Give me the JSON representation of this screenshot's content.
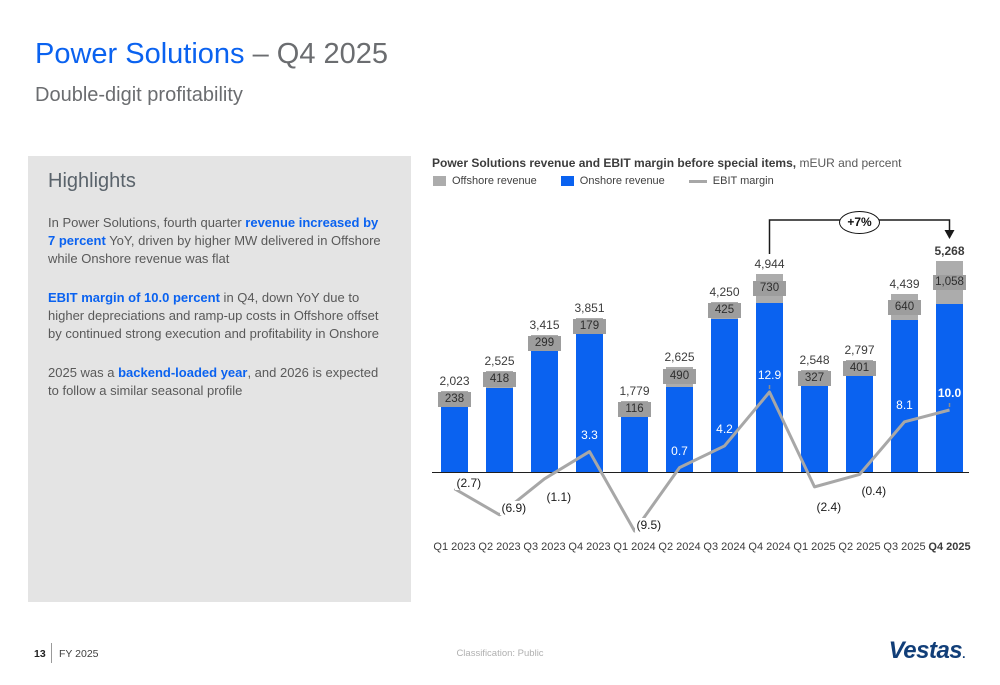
{
  "slide": {
    "title_primary": "Power Solutions",
    "title_secondary": " – Q4 2025",
    "subtitle": "Double-digit profitability"
  },
  "highlights": {
    "heading": "Highlights",
    "paragraphs": [
      [
        {
          "t": "In Power Solutions, fourth quarter "
        },
        {
          "t": "revenue increased by 7 percent",
          "em": true
        },
        {
          "t": " YoY, driven by higher MW delivered in Offshore while Onshore revenue was flat"
        }
      ],
      [
        {
          "t": "EBIT margin of 10.0 percent",
          "em": true
        },
        {
          "t": " in Q4, down YoY due to higher depreciations and ramp-up costs in Offshore offset by continued strong execution and profitability in Onshore"
        }
      ],
      [
        {
          "t": "2025 was a "
        },
        {
          "t": "backend-loaded year",
          "em": true
        },
        {
          "t": ", and 2026 is expected to follow a similar seasonal profile"
        }
      ]
    ]
  },
  "chart": {
    "title_bold": "Power Solutions revenue and EBIT margin before special items,",
    "title_rest": " mEUR and percent",
    "legend": [
      {
        "label": "Offshore revenue",
        "swatch": "box",
        "color": "#acacac"
      },
      {
        "label": "Onshore revenue",
        "swatch": "box",
        "color": "#0a62f0"
      },
      {
        "label": "EBIT margin",
        "swatch": "line",
        "color": "#a7a7a7"
      }
    ]
  },
  "chart_data": {
    "type": "stacked-bar+line",
    "categories": [
      "Q1 2023",
      "Q2 2023",
      "Q3 2023",
      "Q4 2023",
      "Q1 2024",
      "Q2 2024",
      "Q3 2024",
      "Q4 2024",
      "Q1 2025",
      "Q2 2025",
      "Q3 2025",
      "Q4 2025"
    ],
    "series": [
      {
        "name": "Onshore revenue",
        "type": "bar",
        "color": "#0a62f0",
        "values": [
          1785,
          2107,
          3116,
          3672,
          1663,
          2135,
          3825,
          4214,
          2221,
          2396,
          3799,
          4210
        ]
      },
      {
        "name": "Offshore revenue",
        "type": "bar",
        "color": "#acacac",
        "values": [
          238,
          418,
          299,
          179,
          116,
          490,
          425,
          730,
          327,
          401,
          640,
          1058
        ]
      },
      {
        "name": "EBIT margin",
        "type": "line",
        "color": "#a7a7a7",
        "values": [
          -2.7,
          -6.9,
          -1.1,
          3.3,
          -9.5,
          0.7,
          4.2,
          12.9,
          -2.4,
          -0.4,
          8.1,
          10.0
        ]
      }
    ],
    "totals": [
      2023,
      2525,
      3415,
      3851,
      1779,
      2625,
      4250,
      4944,
      2548,
      2797,
      4439,
      5268
    ],
    "total_labels": [
      "2,023",
      "2,525",
      "3,415",
      "3,851",
      "1,779",
      "2,625",
      "4,250",
      "4,944",
      "2,548",
      "2,797",
      "4,439",
      "5,268"
    ],
    "offshore_labels": [
      "238",
      "418",
      "299",
      "179",
      "116",
      "490",
      "425",
      "730",
      "327",
      "401",
      "640",
      "1,058"
    ],
    "ebit_labels": [
      "(2.7)",
      "(6.9)",
      "(1.1)",
      "3.3",
      "(9.5)",
      "0.7",
      "4.2",
      "12.9",
      "(2.4)",
      "(0.4)",
      "8.1",
      "10.0"
    ],
    "unit_bars": "mEUR",
    "unit_line": "percent",
    "highlight_last_index": 11,
    "annotation": {
      "text": "+7%",
      "from_index": 7,
      "to_index": 11
    }
  },
  "footer": {
    "page_number": "13",
    "footer_label": "FY 2025",
    "classification": "Classification: Public",
    "logo": "Vestas",
    "logo_mark": "."
  }
}
